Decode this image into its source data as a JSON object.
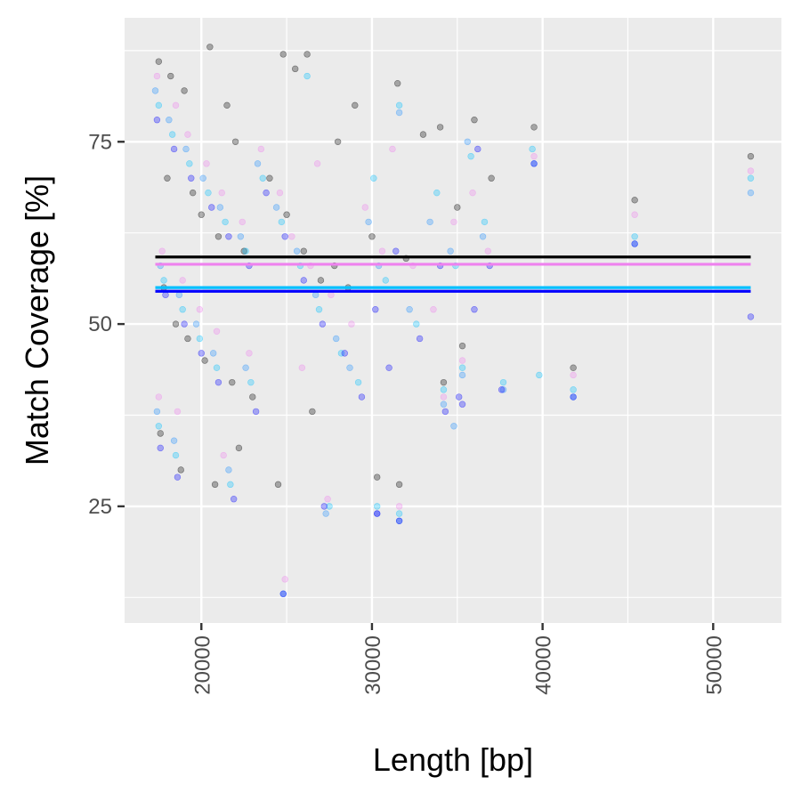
{
  "chart_data": {
    "type": "scatter",
    "xlabel": "Length [bp]",
    "ylabel": "Match Coverage [%]",
    "xlim": [
      15500,
      54000
    ],
    "ylim": [
      9,
      92
    ],
    "x_ticks": [
      20000,
      30000,
      40000,
      50000
    ],
    "x_tick_labels": [
      "20000",
      "30000",
      "40000",
      "50000"
    ],
    "y_ticks": [
      25,
      50,
      75
    ],
    "y_tick_labels": [
      "25",
      "50",
      "75"
    ],
    "grid": true,
    "background": "#ebebeb",
    "point_alpha": 0.3,
    "series": [
      {
        "color": "#000000",
        "mean_line": 59.2,
        "points": [
          [
            17500,
            86
          ],
          [
            18200,
            84
          ],
          [
            19000,
            82
          ],
          [
            20500,
            88
          ],
          [
            21500,
            80
          ],
          [
            22000,
            75
          ],
          [
            18000,
            70
          ],
          [
            19500,
            68
          ],
          [
            20000,
            65
          ],
          [
            21000,
            62
          ],
          [
            22500,
            60
          ],
          [
            17800,
            55
          ],
          [
            18500,
            50
          ],
          [
            19200,
            48
          ],
          [
            20200,
            45
          ],
          [
            21800,
            42
          ],
          [
            23000,
            40
          ],
          [
            17600,
            35
          ],
          [
            18800,
            30
          ],
          [
            20800,
            28
          ],
          [
            22200,
            33
          ],
          [
            24000,
            70
          ],
          [
            25000,
            65
          ],
          [
            26000,
            60
          ],
          [
            27000,
            56
          ],
          [
            28000,
            75
          ],
          [
            29000,
            80
          ],
          [
            30000,
            62
          ],
          [
            31500,
            83
          ],
          [
            25500,
            85
          ],
          [
            26200,
            87
          ],
          [
            24800,
            87
          ],
          [
            32000,
            59
          ],
          [
            33000,
            76
          ],
          [
            34000,
            77
          ],
          [
            35000,
            66
          ],
          [
            36000,
            78
          ],
          [
            37000,
            70
          ],
          [
            39500,
            77
          ],
          [
            41800,
            44
          ],
          [
            45400,
            67
          ],
          [
            52200,
            73
          ],
          [
            35300,
            47
          ],
          [
            34200,
            42
          ],
          [
            30300,
            29
          ],
          [
            31600,
            28
          ],
          [
            26500,
            38
          ],
          [
            24500,
            28
          ],
          [
            27800,
            58
          ],
          [
            28600,
            55
          ]
        ]
      },
      {
        "color": "#ee82ee",
        "mean_line": 58.2,
        "points": [
          [
            17400,
            84
          ],
          [
            18500,
            80
          ],
          [
            19200,
            76
          ],
          [
            20300,
            72
          ],
          [
            21200,
            68
          ],
          [
            22400,
            64
          ],
          [
            17700,
            60
          ],
          [
            18900,
            56
          ],
          [
            19900,
            52
          ],
          [
            20900,
            49
          ],
          [
            22800,
            46
          ],
          [
            17500,
            40
          ],
          [
            18600,
            38
          ],
          [
            21300,
            32
          ],
          [
            23500,
            74
          ],
          [
            24600,
            68
          ],
          [
            25300,
            62
          ],
          [
            26400,
            58
          ],
          [
            27600,
            54
          ],
          [
            28800,
            50
          ],
          [
            29600,
            66
          ],
          [
            30600,
            60
          ],
          [
            31200,
            74
          ],
          [
            32400,
            58
          ],
          [
            33600,
            52
          ],
          [
            34800,
            64
          ],
          [
            35900,
            68
          ],
          [
            36800,
            60
          ],
          [
            39500,
            73
          ],
          [
            41800,
            43
          ],
          [
            45400,
            65
          ],
          [
            52200,
            71
          ],
          [
            35300,
            45
          ],
          [
            34200,
            40
          ],
          [
            30300,
            24
          ],
          [
            31600,
            25
          ],
          [
            27400,
            26
          ],
          [
            24900,
            15
          ],
          [
            25900,
            44
          ],
          [
            26800,
            72
          ]
        ]
      },
      {
        "color": "#1e90ff",
        "mean_line": 54.8,
        "points": [
          [
            17300,
            82
          ],
          [
            18100,
            78
          ],
          [
            19100,
            74
          ],
          [
            20100,
            70
          ],
          [
            21100,
            66
          ],
          [
            22300,
            62
          ],
          [
            17600,
            58
          ],
          [
            18700,
            54
          ],
          [
            19700,
            50
          ],
          [
            20700,
            46
          ],
          [
            22600,
            44
          ],
          [
            17400,
            38
          ],
          [
            18400,
            34
          ],
          [
            21600,
            30
          ],
          [
            23300,
            72
          ],
          [
            24400,
            66
          ],
          [
            25600,
            60
          ],
          [
            26700,
            54
          ],
          [
            27900,
            48
          ],
          [
            28700,
            44
          ],
          [
            29800,
            64
          ],
          [
            30400,
            58
          ],
          [
            31600,
            79
          ],
          [
            32200,
            52
          ],
          [
            33400,
            64
          ],
          [
            34600,
            60
          ],
          [
            35600,
            75
          ],
          [
            36500,
            62
          ],
          [
            39500,
            72
          ],
          [
            41800,
            40
          ],
          [
            45400,
            61
          ],
          [
            52200,
            68
          ],
          [
            35300,
            43
          ],
          [
            34200,
            39
          ],
          [
            30300,
            24
          ],
          [
            31600,
            23
          ],
          [
            27300,
            24
          ],
          [
            24800,
            13
          ],
          [
            34800,
            36
          ],
          [
            37700,
            41
          ]
        ]
      },
      {
        "color": "#00bfff",
        "mean_line": 55.0,
        "points": [
          [
            17500,
            80
          ],
          [
            18300,
            76
          ],
          [
            19300,
            72
          ],
          [
            20400,
            68
          ],
          [
            21400,
            64
          ],
          [
            22600,
            60
          ],
          [
            17800,
            56
          ],
          [
            18900,
            52
          ],
          [
            19900,
            48
          ],
          [
            20900,
            44
          ],
          [
            22900,
            42
          ],
          [
            17500,
            36
          ],
          [
            18500,
            32
          ],
          [
            21700,
            28
          ],
          [
            23600,
            70
          ],
          [
            24700,
            64
          ],
          [
            25800,
            58
          ],
          [
            26900,
            52
          ],
          [
            28200,
            46
          ],
          [
            29200,
            42
          ],
          [
            30100,
            70
          ],
          [
            30800,
            56
          ],
          [
            31600,
            80
          ],
          [
            32600,
            50
          ],
          [
            33800,
            68
          ],
          [
            34900,
            58
          ],
          [
            35800,
            73
          ],
          [
            36600,
            64
          ],
          [
            39400,
            74
          ],
          [
            41800,
            41
          ],
          [
            45400,
            62
          ],
          [
            52200,
            70
          ],
          [
            35300,
            44
          ],
          [
            34200,
            41
          ],
          [
            30300,
            25
          ],
          [
            31600,
            24
          ],
          [
            27500,
            25
          ],
          [
            26200,
            84
          ],
          [
            37700,
            42
          ],
          [
            39800,
            43
          ]
        ]
      },
      {
        "color": "#0000ff",
        "mean_line": 54.5,
        "points": [
          [
            17400,
            78
          ],
          [
            18400,
            74
          ],
          [
            19400,
            70
          ],
          [
            20600,
            66
          ],
          [
            21600,
            62
          ],
          [
            22800,
            58
          ],
          [
            17900,
            54
          ],
          [
            19000,
            50
          ],
          [
            20000,
            46
          ],
          [
            21000,
            42
          ],
          [
            23200,
            38
          ],
          [
            17600,
            33
          ],
          [
            18600,
            29
          ],
          [
            21900,
            26
          ],
          [
            23800,
            68
          ],
          [
            24900,
            62
          ],
          [
            26000,
            56
          ],
          [
            27100,
            50
          ],
          [
            28400,
            46
          ],
          [
            29400,
            40
          ],
          [
            30200,
            52
          ],
          [
            31000,
            44
          ],
          [
            31400,
            60
          ],
          [
            32800,
            48
          ],
          [
            34000,
            58
          ],
          [
            35100,
            40
          ],
          [
            36200,
            74
          ],
          [
            36900,
            58
          ],
          [
            39500,
            72
          ],
          [
            41800,
            40
          ],
          [
            45400,
            61
          ],
          [
            52200,
            51
          ],
          [
            35300,
            39
          ],
          [
            34300,
            38
          ],
          [
            30300,
            24
          ],
          [
            31600,
            23
          ],
          [
            27200,
            25
          ],
          [
            24800,
            13
          ],
          [
            36000,
            52
          ],
          [
            37600,
            41
          ]
        ]
      }
    ]
  }
}
